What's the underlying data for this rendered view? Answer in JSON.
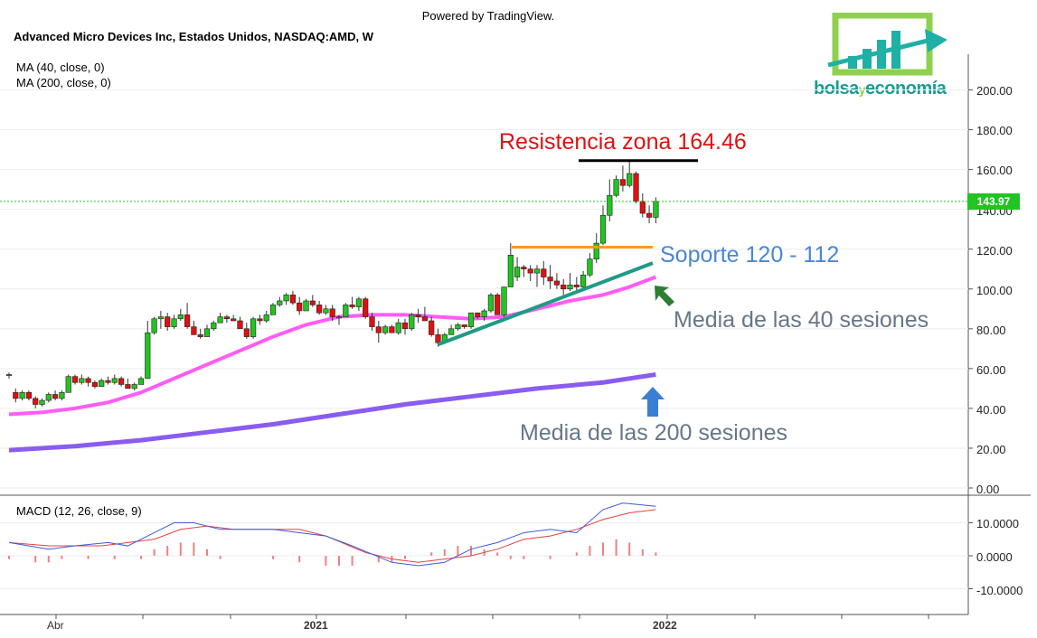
{
  "header": {
    "powered_by": "Powered by TradingView.",
    "symbol_line": "Advanced Micro Devices Inc, Estados Unidos, NASDAQ:AMD, W",
    "indicators": [
      "MA (40, close, 0)",
      "MA (200, close, 0)"
    ],
    "macd_label": "MACD (12, 26, close, 9)"
  },
  "logo": {
    "word_a": "bolsa",
    "word_b": "y",
    "word_c": "economía"
  },
  "annotations": {
    "resistance": "Resistencia zona 164.46",
    "support": "Soporte 120 - 112",
    "ma40": "Media de las 40 sesiones",
    "ma200": "Media de las 200 sesiones"
  },
  "price_axis": {
    "ticks": [
      "200.00",
      "180.00",
      "160.00",
      "140.00",
      "120.00",
      "100.00",
      "80.00",
      "60.00",
      "40.00",
      "20.00",
      "0.00"
    ],
    "last_price": "143.97"
  },
  "macd_axis": {
    "ticks": [
      "10.0000",
      "0.0000",
      "-10.0000"
    ]
  },
  "time_axis": {
    "labels": [
      "Abr",
      "2021",
      "2022"
    ]
  },
  "colors": {
    "up": "#22c422",
    "down": "#e01010",
    "ma40": "#ff5cf4",
    "ma200": "#8a5cf0",
    "resistance_line": "#000000",
    "support_line": "#ff9a1a",
    "trendline": "#1f9a85",
    "resistance_text": "#e01010",
    "support_text": "#4a86d8",
    "ma_text": "#667788",
    "macd_line": "#3b5bdb",
    "signal_line": "#e84040",
    "last_price_line": "#22c422"
  },
  "chart_data": {
    "type": "candlestick",
    "title": "Advanced Micro Devices Inc, Estados Unidos, NASDAQ:AMD, W",
    "ylim": [
      0,
      210
    ],
    "macd_ylim": [
      -15,
      20
    ],
    "candles": [
      [
        57,
        58,
        55,
        57
      ],
      [
        48,
        50,
        43,
        45
      ],
      [
        45,
        49,
        44,
        48
      ],
      [
        48,
        49,
        44,
        45
      ],
      [
        45,
        46,
        40,
        42
      ],
      [
        42,
        45,
        41,
        44
      ],
      [
        44,
        48,
        43,
        47
      ],
      [
        47,
        49,
        44,
        45
      ],
      [
        45,
        49,
        44,
        48
      ],
      [
        48,
        57,
        48,
        56
      ],
      [
        56,
        57,
        52,
        53
      ],
      [
        53,
        57,
        52,
        55
      ],
      [
        55,
        56,
        51,
        53
      ],
      [
        53,
        54,
        50,
        51
      ],
      [
        51,
        55,
        51,
        54
      ],
      [
        54,
        56,
        52,
        53
      ],
      [
        53,
        57,
        52,
        55
      ],
      [
        55,
        56,
        51,
        52
      ],
      [
        52,
        55,
        50,
        50
      ],
      [
        50,
        53,
        49,
        52
      ],
      [
        52,
        56,
        52,
        55
      ],
      [
        55,
        84,
        55,
        78
      ],
      [
        78,
        86,
        77,
        85
      ],
      [
        85,
        89,
        80,
        86
      ],
      [
        86,
        88,
        79,
        81
      ],
      [
        81,
        87,
        80,
        85
      ],
      [
        85,
        90,
        84,
        87
      ],
      [
        87,
        93,
        80,
        81
      ],
      [
        81,
        84,
        77,
        77
      ],
      [
        77,
        80,
        75,
        76
      ],
      [
        76,
        82,
        76,
        80
      ],
      [
        80,
        84,
        79,
        83
      ],
      [
        83,
        88,
        83,
        86
      ],
      [
        86,
        87,
        83,
        85
      ],
      [
        85,
        87,
        84,
        84
      ],
      [
        84,
        86,
        80,
        80
      ],
      [
        80,
        83,
        75,
        76
      ],
      [
        76,
        86,
        75,
        85
      ],
      [
        85,
        87,
        82,
        84
      ],
      [
        84,
        89,
        83,
        87
      ],
      [
        87,
        93,
        87,
        92
      ],
      [
        92,
        96,
        91,
        94
      ],
      [
        94,
        98,
        92,
        97
      ],
      [
        97,
        99,
        92,
        93
      ],
      [
        93,
        96,
        87,
        89
      ],
      [
        89,
        95,
        89,
        94
      ],
      [
        94,
        97,
        91,
        92
      ],
      [
        92,
        94,
        87,
        88
      ],
      [
        88,
        92,
        87,
        90
      ],
      [
        90,
        92,
        84,
        86
      ],
      [
        86,
        87,
        82,
        86
      ],
      [
        86,
        93,
        86,
        92
      ],
      [
        92,
        96,
        90,
        91
      ],
      [
        91,
        96,
        89,
        95
      ],
      [
        95,
        96,
        85,
        86
      ],
      [
        86,
        88,
        79,
        81
      ],
      [
        81,
        84,
        73,
        78
      ],
      [
        78,
        82,
        77,
        81
      ],
      [
        81,
        82,
        78,
        78
      ],
      [
        78,
        85,
        77,
        83
      ],
      [
        83,
        85,
        77,
        80
      ],
      [
        80,
        88,
        79,
        87
      ],
      [
        87,
        90,
        83,
        86
      ],
      [
        86,
        91,
        85,
        84
      ],
      [
        84,
        86,
        76,
        77
      ],
      [
        77,
        80,
        71,
        73
      ],
      [
        73,
        78,
        73,
        77
      ],
      [
        77,
        82,
        77,
        80
      ],
      [
        80,
        83,
        79,
        82
      ],
      [
        82,
        82,
        80,
        81
      ],
      [
        81,
        88,
        80,
        88
      ],
      [
        88,
        88,
        85,
        86
      ],
      [
        86,
        90,
        84,
        89
      ],
      [
        89,
        98,
        88,
        97
      ],
      [
        97,
        98,
        87,
        87
      ],
      [
        87,
        101,
        86,
        101
      ],
      [
        101,
        123,
        101,
        117
      ],
      [
        106,
        116,
        104,
        111
      ],
      [
        111,
        112,
        106,
        110
      ],
      [
        110,
        112,
        104,
        108
      ],
      [
        108,
        112,
        101,
        110
      ],
      [
        110,
        114,
        102,
        106
      ],
      [
        106,
        112,
        100,
        104
      ],
      [
        104,
        108,
        100,
        102
      ],
      [
        102,
        105,
        97,
        100
      ],
      [
        100,
        108,
        99,
        102
      ],
      [
        102,
        106,
        99,
        101
      ],
      [
        101,
        109,
        100,
        107
      ],
      [
        107,
        118,
        106,
        115
      ],
      [
        115,
        128,
        113,
        123
      ],
      [
        123,
        142,
        122,
        137
      ],
      [
        137,
        155,
        134,
        147
      ],
      [
        147,
        157,
        146,
        155
      ],
      [
        155,
        162,
        149,
        152
      ],
      [
        152,
        164,
        151,
        158
      ],
      [
        158,
        159,
        143,
        144
      ],
      [
        144,
        148,
        136,
        138
      ],
      [
        138,
        142,
        133,
        136
      ],
      [
        136,
        146,
        133,
        144
      ]
    ],
    "ma40": [
      [
        0,
        37
      ],
      [
        5,
        38
      ],
      [
        10,
        40
      ],
      [
        15,
        43
      ],
      [
        20,
        48
      ],
      [
        25,
        55
      ],
      [
        30,
        62
      ],
      [
        35,
        69
      ],
      [
        40,
        76
      ],
      [
        45,
        82
      ],
      [
        50,
        86
      ],
      [
        55,
        87
      ],
      [
        60,
        87
      ],
      [
        65,
        86
      ],
      [
        70,
        85
      ],
      [
        75,
        86
      ],
      [
        80,
        90
      ],
      [
        85,
        94
      ],
      [
        90,
        97
      ],
      [
        94,
        101
      ],
      [
        98,
        106
      ]
    ],
    "ma200": [
      [
        0,
        19
      ],
      [
        10,
        21
      ],
      [
        20,
        24
      ],
      [
        30,
        28
      ],
      [
        40,
        32
      ],
      [
        50,
        37
      ],
      [
        60,
        42
      ],
      [
        70,
        46
      ],
      [
        80,
        50
      ],
      [
        90,
        53
      ],
      [
        98,
        57
      ]
    ],
    "macd": [
      [
        0,
        4
      ],
      [
        6,
        2
      ],
      [
        10,
        3
      ],
      [
        15,
        4
      ],
      [
        18,
        3
      ],
      [
        22,
        7
      ],
      [
        25,
        10
      ],
      [
        28,
        10
      ],
      [
        32,
        8
      ],
      [
        36,
        8
      ],
      [
        40,
        8
      ],
      [
        44,
        7
      ],
      [
        48,
        6
      ],
      [
        52,
        3
      ],
      [
        58,
        -2
      ],
      [
        62,
        -3
      ],
      [
        66,
        -2
      ],
      [
        70,
        2
      ],
      [
        74,
        4
      ],
      [
        78,
        7
      ],
      [
        82,
        8
      ],
      [
        86,
        7
      ],
      [
        90,
        14
      ],
      [
        93,
        16
      ],
      [
        98,
        15
      ]
    ],
    "signal": [
      [
        0,
        4
      ],
      [
        6,
        3
      ],
      [
        10,
        3
      ],
      [
        14,
        3
      ],
      [
        18,
        4
      ],
      [
        22,
        5
      ],
      [
        26,
        8
      ],
      [
        30,
        9
      ],
      [
        34,
        8
      ],
      [
        40,
        8
      ],
      [
        44,
        8
      ],
      [
        48,
        6
      ],
      [
        54,
        1
      ],
      [
        58,
        -1
      ],
      [
        62,
        -2
      ],
      [
        66,
        -1
      ],
      [
        70,
        0
      ],
      [
        74,
        2
      ],
      [
        78,
        5
      ],
      [
        82,
        6
      ],
      [
        86,
        8
      ],
      [
        90,
        11
      ],
      [
        94,
        13
      ],
      [
        98,
        14
      ]
    ],
    "histogram": [
      [
        0,
        -1
      ],
      [
        4,
        -2
      ],
      [
        6,
        -2
      ],
      [
        8,
        -1
      ],
      [
        12,
        -1
      ],
      [
        16,
        -1
      ],
      [
        20,
        -1
      ],
      [
        22,
        2
      ],
      [
        24,
        3
      ],
      [
        26,
        4
      ],
      [
        28,
        4
      ],
      [
        30,
        2
      ],
      [
        32,
        -1
      ],
      [
        40,
        -1
      ],
      [
        44,
        -2
      ],
      [
        48,
        -3
      ],
      [
        50,
        -3
      ],
      [
        52,
        -3
      ],
      [
        56,
        -2
      ],
      [
        58,
        -2
      ],
      [
        60,
        -1
      ],
      [
        64,
        1
      ],
      [
        66,
        2
      ],
      [
        68,
        3
      ],
      [
        70,
        3
      ],
      [
        72,
        2
      ],
      [
        74,
        1
      ],
      [
        76,
        -1
      ],
      [
        78,
        -1
      ],
      [
        82,
        -1
      ],
      [
        86,
        1
      ],
      [
        88,
        3
      ],
      [
        90,
        4
      ],
      [
        92,
        5
      ],
      [
        94,
        4
      ],
      [
        96,
        2
      ],
      [
        98,
        1
      ]
    ]
  }
}
